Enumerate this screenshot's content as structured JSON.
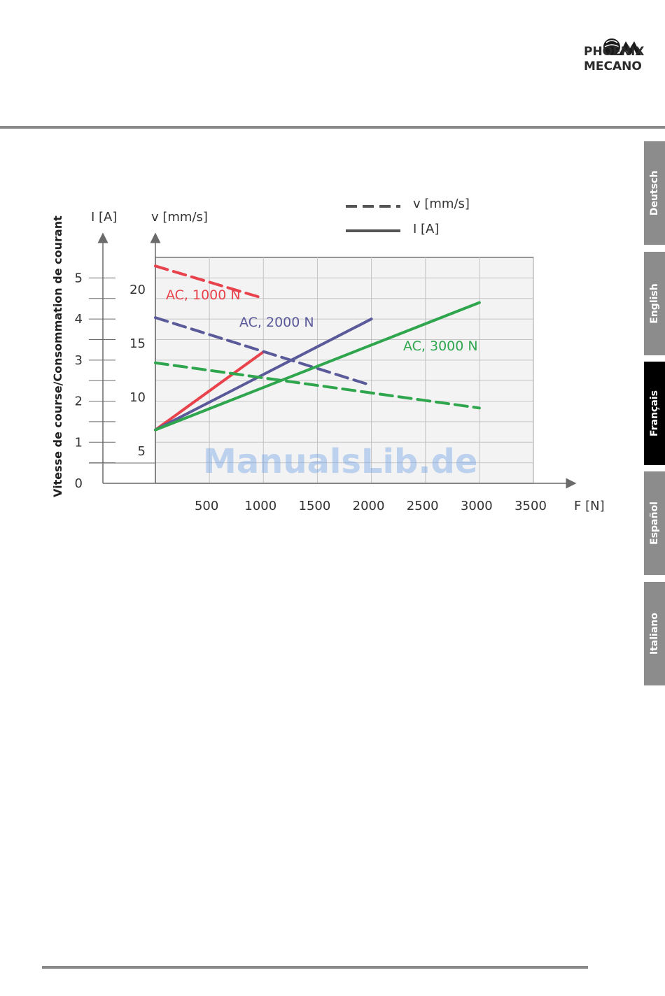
{
  "brand": {
    "line1": "PHOENIX",
    "line2": "MECANO"
  },
  "tabs": [
    {
      "label": "Deutsch",
      "active": false
    },
    {
      "label": "English",
      "active": false
    },
    {
      "label": "Français",
      "active": true
    },
    {
      "label": "Español",
      "active": false
    },
    {
      "label": "Italiano",
      "active": false
    }
  ],
  "watermark": "ManualsLib.de",
  "chart_data": {
    "type": "line",
    "title": "",
    "ylabel": "Vitesse de course/Consommation de courant",
    "xlabel": "F [N]",
    "xlim": [
      0,
      3500
    ],
    "x_ticks": [
      500,
      1000,
      1500,
      2000,
      2500,
      3000,
      3500
    ],
    "grid": true,
    "legend": {
      "position": "top-right",
      "items": [
        {
          "label": "v [mm/s]",
          "style": "dashed"
        },
        {
          "label": "I [A]",
          "style": "solid"
        }
      ]
    },
    "axes": {
      "current": {
        "label": "I [A]",
        "ticks": [
          0,
          1,
          2,
          3,
          4,
          5
        ],
        "lim": [
          0,
          5.5
        ]
      },
      "speed": {
        "label": "v [mm/s]",
        "ticks": [
          5,
          10,
          15,
          20
        ],
        "lim": [
          2,
          23
        ]
      }
    },
    "series": [
      {
        "name": "AC, 1000 N",
        "color": "#e8434c",
        "quantity": "speed",
        "style": "dashed",
        "x": [
          0,
          1000
        ],
        "y": [
          22.2,
          19.2
        ]
      },
      {
        "name": "AC, 1000 N",
        "color": "#e8434c",
        "quantity": "current",
        "style": "solid",
        "x": [
          0,
          1000
        ],
        "y": [
          1.3,
          3.2
        ]
      },
      {
        "name": "AC, 2000 N",
        "color": "#5a5a9a",
        "quantity": "speed",
        "style": "dashed",
        "x": [
          0,
          2000
        ],
        "y": [
          17.4,
          11.1
        ]
      },
      {
        "name": "AC, 2000 N",
        "color": "#5a5a9a",
        "quantity": "current",
        "style": "solid",
        "x": [
          0,
          2000
        ],
        "y": [
          1.3,
          4.0
        ]
      },
      {
        "name": "AC, 3000 N",
        "color": "#2fa64e",
        "quantity": "speed",
        "style": "dashed",
        "x": [
          0,
          3000
        ],
        "y": [
          13.2,
          9.0
        ]
      },
      {
        "name": "AC, 3000 N",
        "color": "#2fa64e",
        "quantity": "current",
        "style": "solid",
        "x": [
          0,
          3000
        ],
        "y": [
          1.3,
          4.4
        ]
      }
    ],
    "annotations": [
      {
        "text": "AC, 1000 N",
        "color": "#e8434c"
      },
      {
        "text": "AC, 2000 N",
        "color": "#5a5a9a"
      },
      {
        "text": "AC, 3000 N",
        "color": "#2fa64e"
      }
    ]
  }
}
